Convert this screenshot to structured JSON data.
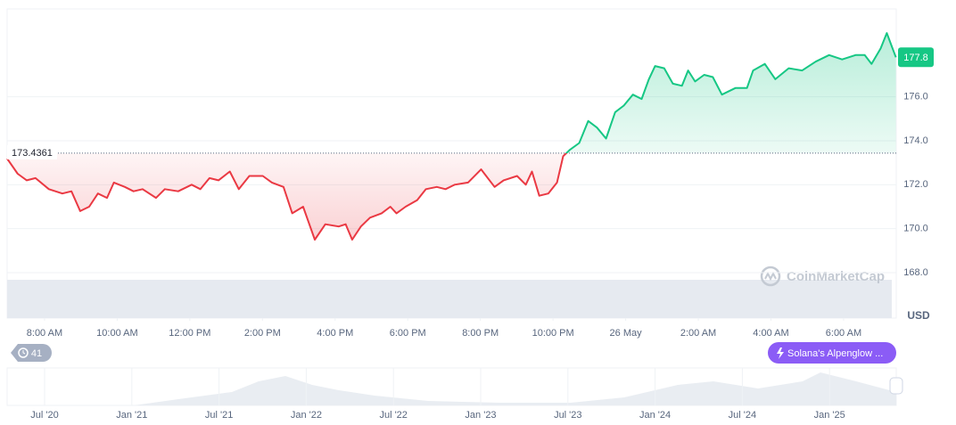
{
  "chart_data": {
    "type": "line",
    "ylabel": "USD",
    "x": [
      6.97,
      7.26,
      7.51,
      7.75,
      8.12,
      8.49,
      8.74,
      8.98,
      9.23,
      9.47,
      9.72,
      9.91,
      10.21,
      10.45,
      10.7,
      11.07,
      11.31,
      11.68,
      12.05,
      12.29,
      12.54,
      12.79,
      13.1,
      13.35,
      13.64,
      14.01,
      14.26,
      14.58,
      14.82,
      15.12,
      15.44,
      15.73,
      16.1,
      16.29,
      16.47,
      16.71,
      16.96,
      17.28,
      17.52,
      17.69,
      17.94,
      18.26,
      18.5,
      18.8,
      19.04,
      19.29,
      19.66,
      20.02,
      20.39,
      20.64,
      21.01,
      21.25,
      21.42,
      21.62,
      21.87,
      22.11,
      22.28,
      22.47,
      22.72,
      22.97,
      23.21,
      23.46,
      23.71,
      23.95,
      24.2,
      24.44,
      24.64,
      24.81,
      25.06,
      25.3,
      25.55,
      25.72,
      25.91,
      26.16,
      26.4,
      26.65,
      27.02,
      27.34,
      27.51,
      27.83,
      28.12,
      28.49,
      28.86,
      29.23,
      29.6,
      29.96,
      30.33,
      30.58,
      30.77,
      31.02,
      31.19,
      31.44
    ],
    "series": [
      {
        "up_color": "#16c784",
        "down_color": "#ea3943",
        "values": [
          173.19,
          172.5,
          172.2,
          172.3,
          171.8,
          171.6,
          171.7,
          170.8,
          171.0,
          171.6,
          171.4,
          172.1,
          171.9,
          171.7,
          171.8,
          171.4,
          171.8,
          171.7,
          172.0,
          171.8,
          172.3,
          172.2,
          172.6,
          171.8,
          172.4,
          172.4,
          172.1,
          171.9,
          170.7,
          171.0,
          169.5,
          170.2,
          170.1,
          170.2,
          169.5,
          170.1,
          170.5,
          170.7,
          171.0,
          170.7,
          171.0,
          171.3,
          171.8,
          171.9,
          171.8,
          172.0,
          172.1,
          172.7,
          171.9,
          172.2,
          172.4,
          172.0,
          172.6,
          171.5,
          171.6,
          172.1,
          173.3,
          173.6,
          173.9,
          174.9,
          174.6,
          174.1,
          175.3,
          175.6,
          176.1,
          175.9,
          176.8,
          177.4,
          177.3,
          176.6,
          176.5,
          177.2,
          176.7,
          177.0,
          176.9,
          176.1,
          176.4,
          176.4,
          177.2,
          177.5,
          176.8,
          177.3,
          177.2,
          177.6,
          177.9,
          177.7,
          177.9,
          177.9,
          177.5,
          178.2,
          178.9,
          177.8
        ]
      }
    ],
    "baseline": 173.4361,
    "xlim": [
      6.97,
      31.45
    ],
    "ylim": [
      168,
      180
    ],
    "yticks": [
      {
        "value": 168,
        "label": "168.0"
      },
      {
        "value": 170,
        "label": "170.0"
      },
      {
        "value": 172,
        "label": "172.0"
      },
      {
        "value": 174,
        "label": "174.0"
      },
      {
        "value": 176,
        "label": "176.0"
      }
    ],
    "xticks": [
      {
        "value": 8,
        "label": "8:00 AM"
      },
      {
        "value": 10,
        "label": "10:00 AM"
      },
      {
        "value": 12,
        "label": "12:00 PM"
      },
      {
        "value": 14,
        "label": "2:00 PM"
      },
      {
        "value": 16,
        "label": "4:00 PM"
      },
      {
        "value": 18,
        "label": "6:00 PM"
      },
      {
        "value": 20,
        "label": "8:00 PM"
      },
      {
        "value": 22,
        "label": "10:00 PM"
      },
      {
        "value": 24,
        "label": "26 May"
      },
      {
        "value": 26,
        "label": "2:00 AM"
      },
      {
        "value": 28,
        "label": "4:00 AM"
      },
      {
        "value": 30,
        "label": "6:00 AM"
      }
    ],
    "grid": true
  },
  "ui": {
    "watermark": "CoinMarketCap",
    "badge": "41",
    "news": "Solana's Alpenglow ...",
    "navigator_labels": [
      "Jul '20",
      "Jan '21",
      "Jul '21",
      "Jan '22",
      "Jul '22",
      "Jan '23",
      "Jul '23",
      "Jan '24",
      "Jul '24",
      "Jan '25"
    ]
  }
}
